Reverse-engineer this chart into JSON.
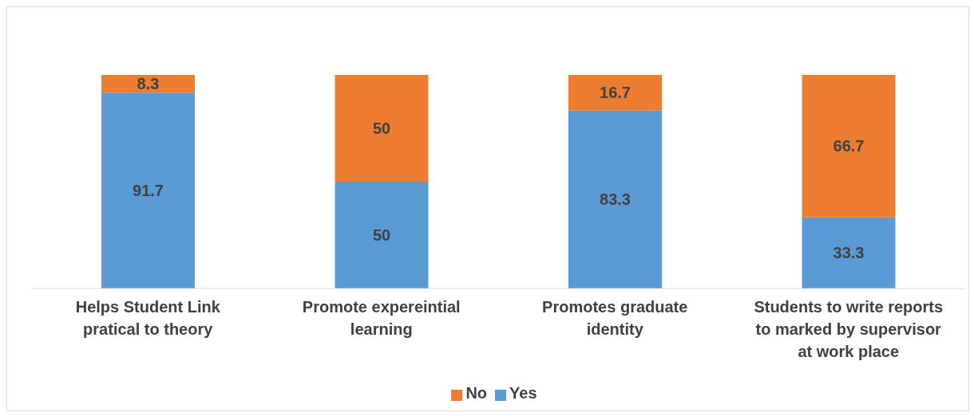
{
  "chart_data": {
    "type": "bar",
    "stacked": true,
    "data_labels": true,
    "legend": "bottom",
    "grid": false,
    "categories": [
      "Helps Student Link pratical to theory",
      "Promote expereintial learning",
      "Promotes graduate identity",
      "Students to write reports to marked by supervisor at work place"
    ],
    "series": [
      {
        "name": "Yes",
        "color": "#5b9bd5",
        "values": [
          91.7,
          50,
          83.3,
          33.3
        ]
      },
      {
        "name": "No",
        "color": "#ed7d31",
        "values": [
          8.3,
          50,
          16.7,
          66.7
        ]
      }
    ]
  }
}
